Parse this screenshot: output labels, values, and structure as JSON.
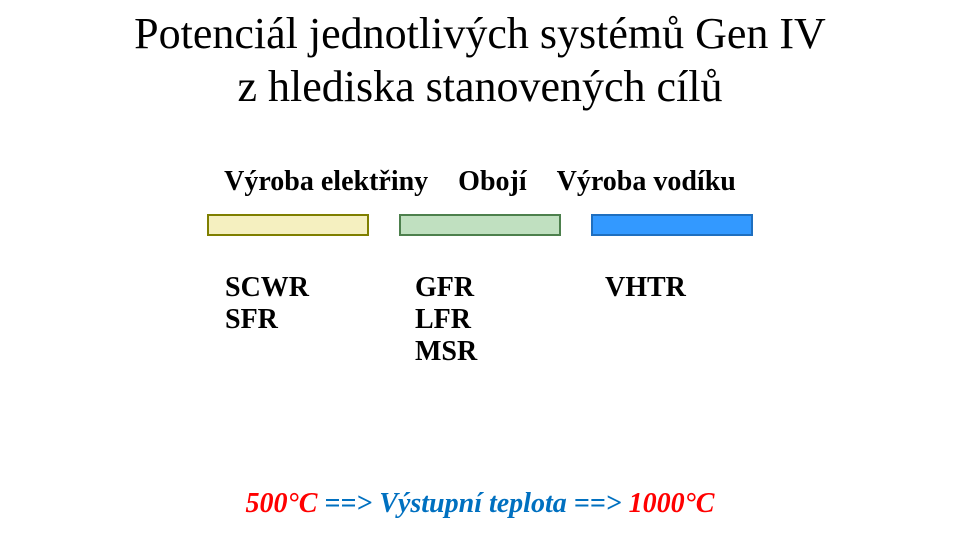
{
  "title_line1": "Potenciál jednotlivých systémů Gen IV",
  "title_line2": "z hlediska stanovených cílů",
  "headers": {
    "col1": "Výroba elektřiny",
    "col2": "Obojí",
    "col3": "Výroba vodíku"
  },
  "bars": [
    {
      "fill": "#f5f0c0",
      "border": "#7f7f00"
    },
    {
      "fill": "#c0e0c0",
      "border": "#4d804d"
    },
    {
      "fill": "#3399ff",
      "border": "#1f6fbf"
    }
  ],
  "columns_labels": {
    "col1": [
      "SCWR",
      "SFR"
    ],
    "col2": [
      "GFR",
      "LFR",
      "MSR"
    ],
    "col3": [
      "VHTR"
    ]
  },
  "footer": {
    "left": "500°C",
    "arrow1": "==>",
    "mid": "Výstupní teplota",
    "arrow2": "==>",
    "right": "1000°C",
    "colors": {
      "left": "#ff0000",
      "arrow": "#0070c0",
      "mid": "#0070c0",
      "right": "#ff0000"
    }
  }
}
